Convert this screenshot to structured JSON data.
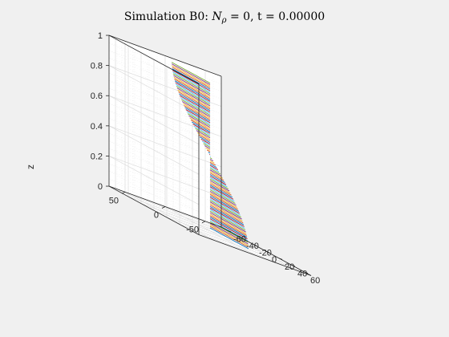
{
  "chart_data": {
    "type": "line",
    "title_prefix": "Simulation B0:  ",
    "title_symbol": "N",
    "title_subscript": "ρ",
    "title_suffix": " = 0, t = 0.00000",
    "xlabel": "",
    "ylabel": "",
    "zlabel": "z",
    "xlim": [
      -70,
      70
    ],
    "ylim": [
      -70,
      70
    ],
    "zlim": [
      0,
      1
    ],
    "xticks": [
      -60,
      -40,
      -20,
      0,
      20,
      40,
      60
    ],
    "xtick_labels": [
      "-60",
      "-40",
      "-20",
      "0",
      "20",
      "40",
      "60"
    ],
    "yticks": [
      -50,
      0,
      50
    ],
    "ytick_labels": [
      "-50",
      "0",
      "50"
    ],
    "zticks": [
      0,
      0.2,
      0.4,
      0.6,
      0.8,
      1
    ],
    "ztick_labels": [
      "0",
      "0.2",
      "0.4",
      "0.6",
      "0.8",
      "1"
    ],
    "grid": true,
    "view": "3d",
    "sheet": {
      "description_of_data": "stack of horizontal line segments along x from 0 to r(z) at y = 0; r(z) = 60*cos(pi*z)",
      "amplitude": 60,
      "z_range": [
        0.02,
        0.98
      ],
      "line_count": 96
    },
    "series_colors": [
      "#0072bd",
      "#d95319",
      "#edb120",
      "#7e2f8e",
      "#77ac30",
      "#4dbeee",
      "#a2142f"
    ]
  }
}
